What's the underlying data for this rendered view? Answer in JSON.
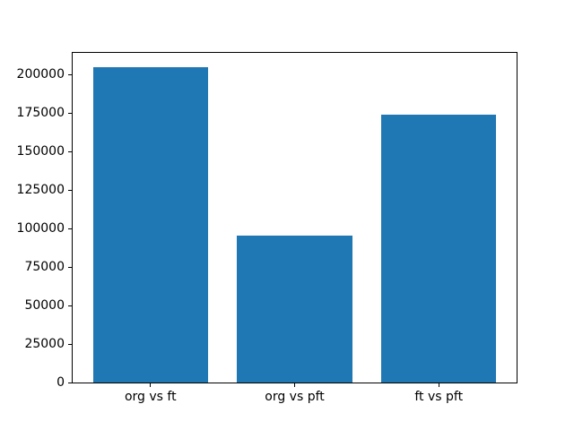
{
  "figure": {
    "background_color": "#ffffff",
    "spine_color": "#000000",
    "text_color": "#000000"
  },
  "chart_data": {
    "type": "bar",
    "categories": [
      "org vs ft",
      "org vs pft",
      "ft vs pft"
    ],
    "values": [
      204800,
      95600,
      173800
    ],
    "bar_color": "#1f77b4",
    "ylim": [
      0,
      215000
    ],
    "yticks": [
      0,
      25000,
      50000,
      75000,
      100000,
      125000,
      150000,
      175000,
      200000
    ],
    "ytick_labels": [
      "0",
      "25000",
      "50000",
      "75000",
      "100000",
      "125000",
      "150000",
      "175000",
      "200000"
    ],
    "grid": false,
    "legend": "none"
  }
}
